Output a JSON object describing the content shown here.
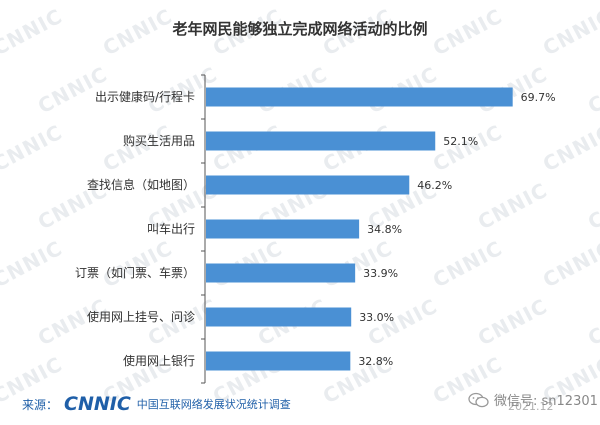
{
  "chart_data": {
    "type": "bar",
    "orientation": "horizontal",
    "title": "老年网民能够独立完成网络活动的比例",
    "categories": [
      "出示健康码/行程卡",
      "购买生活用品",
      "查找信息（如地图）",
      "叫车出行",
      "订票（如门票、车票）",
      "使用网上挂号、问诊",
      "使用网上银行"
    ],
    "values": [
      69.7,
      52.1,
      46.2,
      34.8,
      33.9,
      33.0,
      32.8
    ],
    "data_labels": [
      "69.7%",
      "52.1%",
      "46.2%",
      "34.8%",
      "33.9%",
      "33.0%",
      "32.8%"
    ],
    "xlim": [
      0,
      75
    ],
    "bar_color": "#4a90d4",
    "grid": false,
    "legend": "none"
  },
  "footer": {
    "source_label": "来源：",
    "brand": "CNNIC",
    "brand_sub": "中国互联网络发展状况统计调查",
    "date": "2021.12"
  },
  "watermark": {
    "text": "CNNIC",
    "color": "#e9ecef"
  },
  "wechat": {
    "icon": "wechat-icon",
    "text": "微信号: sn12301"
  }
}
